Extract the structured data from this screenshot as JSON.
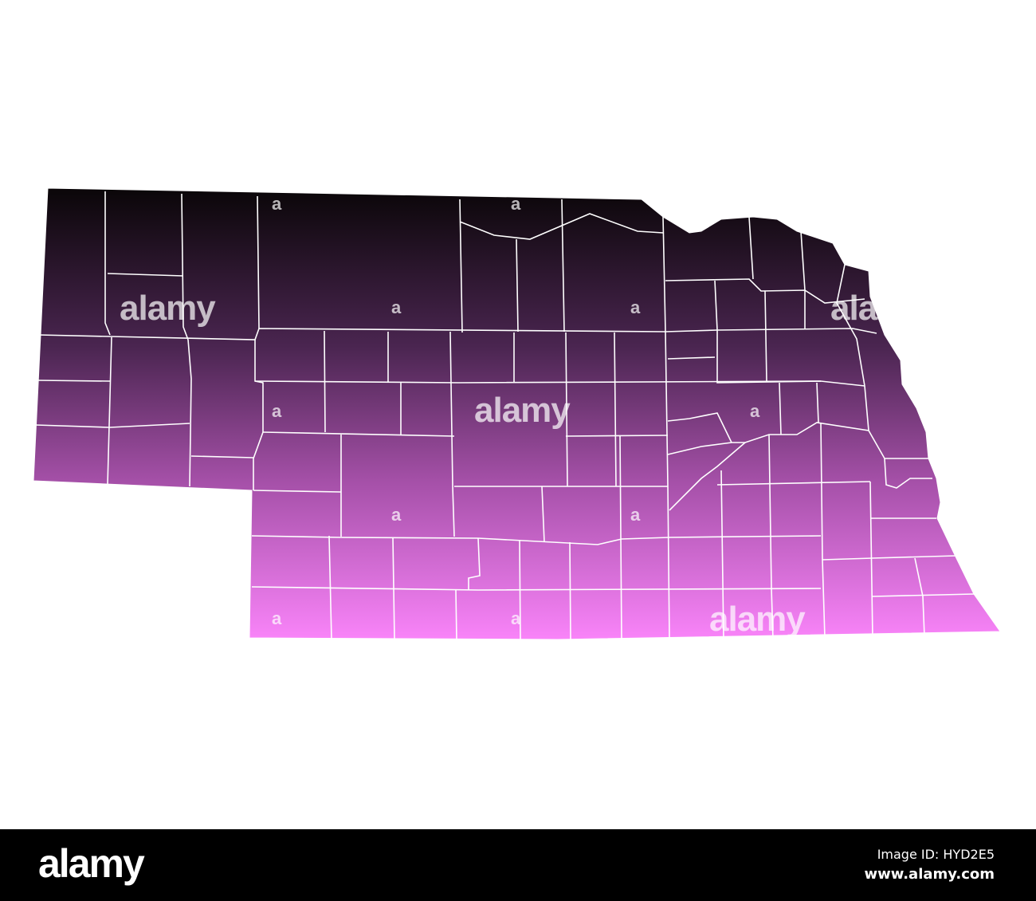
{
  "map": {
    "region": "Nebraska counties",
    "gradient_top_color": "#0a0608",
    "gradient_bottom_color": "#f984f9",
    "border_color": "#ffffff"
  },
  "watermark": {
    "text": "alamy",
    "small_mark": "a"
  },
  "footer": {
    "logo": "alamy",
    "image_id": "Image ID: HYD2E5",
    "website": "www.alamy.com"
  }
}
